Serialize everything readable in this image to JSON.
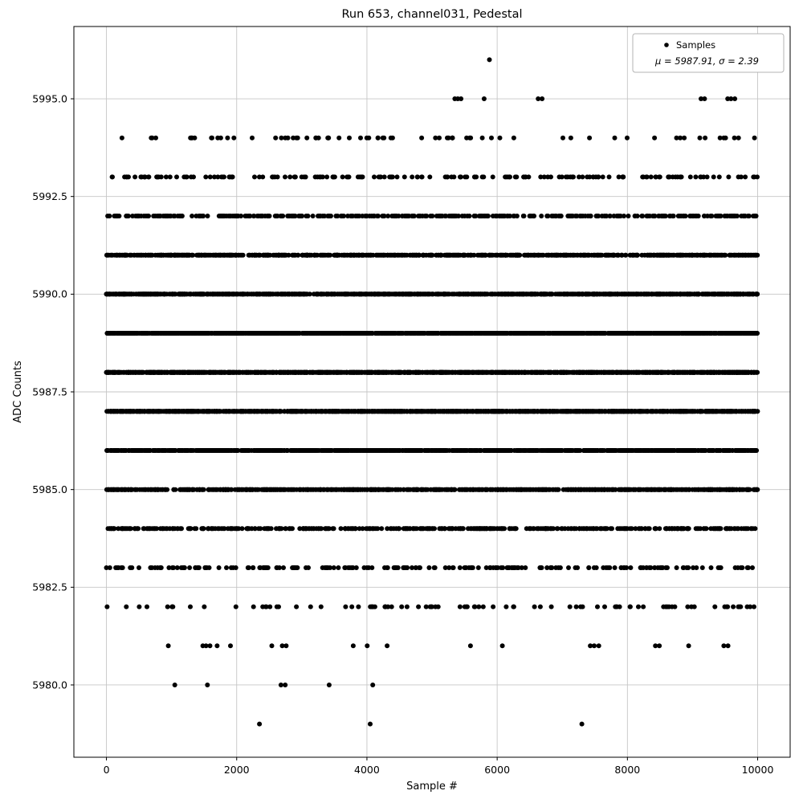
{
  "chart_data": {
    "type": "scatter",
    "title": "Run 653, channel031, Pedestal",
    "xlabel": "Sample #",
    "ylabel": "ADC Counts",
    "xlim": [
      -500,
      10499
    ],
    "ylim": [
      5978.15,
      5996.85
    ],
    "xticks": [
      {
        "value": 0,
        "label": "0"
      },
      {
        "value": 2000,
        "label": "2000"
      },
      {
        "value": 4000,
        "label": "4000"
      },
      {
        "value": 6000,
        "label": "6000"
      },
      {
        "value": 8000,
        "label": "8000"
      },
      {
        "value": 10000,
        "label": "10000"
      }
    ],
    "yticks": [
      {
        "value": 5980.0,
        "label": "5980.0"
      },
      {
        "value": 5982.5,
        "label": "5982.5"
      },
      {
        "value": 5985.0,
        "label": "5985.0"
      },
      {
        "value": 5987.5,
        "label": "5987.5"
      },
      {
        "value": 5990.0,
        "label": "5990.0"
      },
      {
        "value": 5992.5,
        "label": "5992.5"
      },
      {
        "value": 5995.0,
        "label": "5995.0"
      }
    ],
    "grid": true,
    "grid_color": "#c6c6c6",
    "marker_color": "#000000",
    "marker_size": 3,
    "legend": {
      "position": "upper right",
      "sample_label": "Samples",
      "stats_label": "μ = 5987.91, σ = 2.39"
    },
    "stats": {
      "mu": 5987.91,
      "sigma": 2.39,
      "n_samples": 10000
    },
    "x_range_of_samples": [
      0,
      9999
    ],
    "levels": [
      {
        "adc": 5996,
        "x": [
          5881
        ]
      },
      {
        "adc": 5995,
        "x": [
          5350,
          5395,
          5445,
          5800,
          6630,
          6690,
          9130,
          9185,
          9540,
          9590,
          9650
        ]
      },
      {
        "adc": 5994,
        "count": 72
      },
      {
        "adc": 5993,
        "count": 180
      },
      {
        "adc": 5992,
        "count": 390
      },
      {
        "adc": 5991,
        "count": 730
      },
      {
        "adc": 5990,
        "count": 1120
      },
      {
        "adc": 5989,
        "count": 1480
      },
      {
        "adc": 5988,
        "count": 1650
      },
      {
        "adc": 5987,
        "count": 1540
      },
      {
        "adc": 5986,
        "count": 1210
      },
      {
        "adc": 5985,
        "count": 800
      },
      {
        "adc": 5984,
        "count": 450
      },
      {
        "adc": 5983,
        "count": 210
      },
      {
        "adc": 5982,
        "count": 92
      },
      {
        "adc": 5981,
        "x": [
          950,
          1480,
          1530,
          1590,
          1700,
          1905,
          2540,
          2700,
          2760,
          3790,
          4005,
          4310,
          5590,
          6080,
          7430,
          7490,
          7560,
          8430,
          8490,
          8940,
          9480,
          9545
        ]
      },
      {
        "adc": 5980,
        "x": [
          1050,
          1550,
          2680,
          2745,
          3420,
          4090
        ]
      },
      {
        "adc": 5979,
        "x": [
          2350,
          4050,
          7300
        ]
      }
    ]
  }
}
